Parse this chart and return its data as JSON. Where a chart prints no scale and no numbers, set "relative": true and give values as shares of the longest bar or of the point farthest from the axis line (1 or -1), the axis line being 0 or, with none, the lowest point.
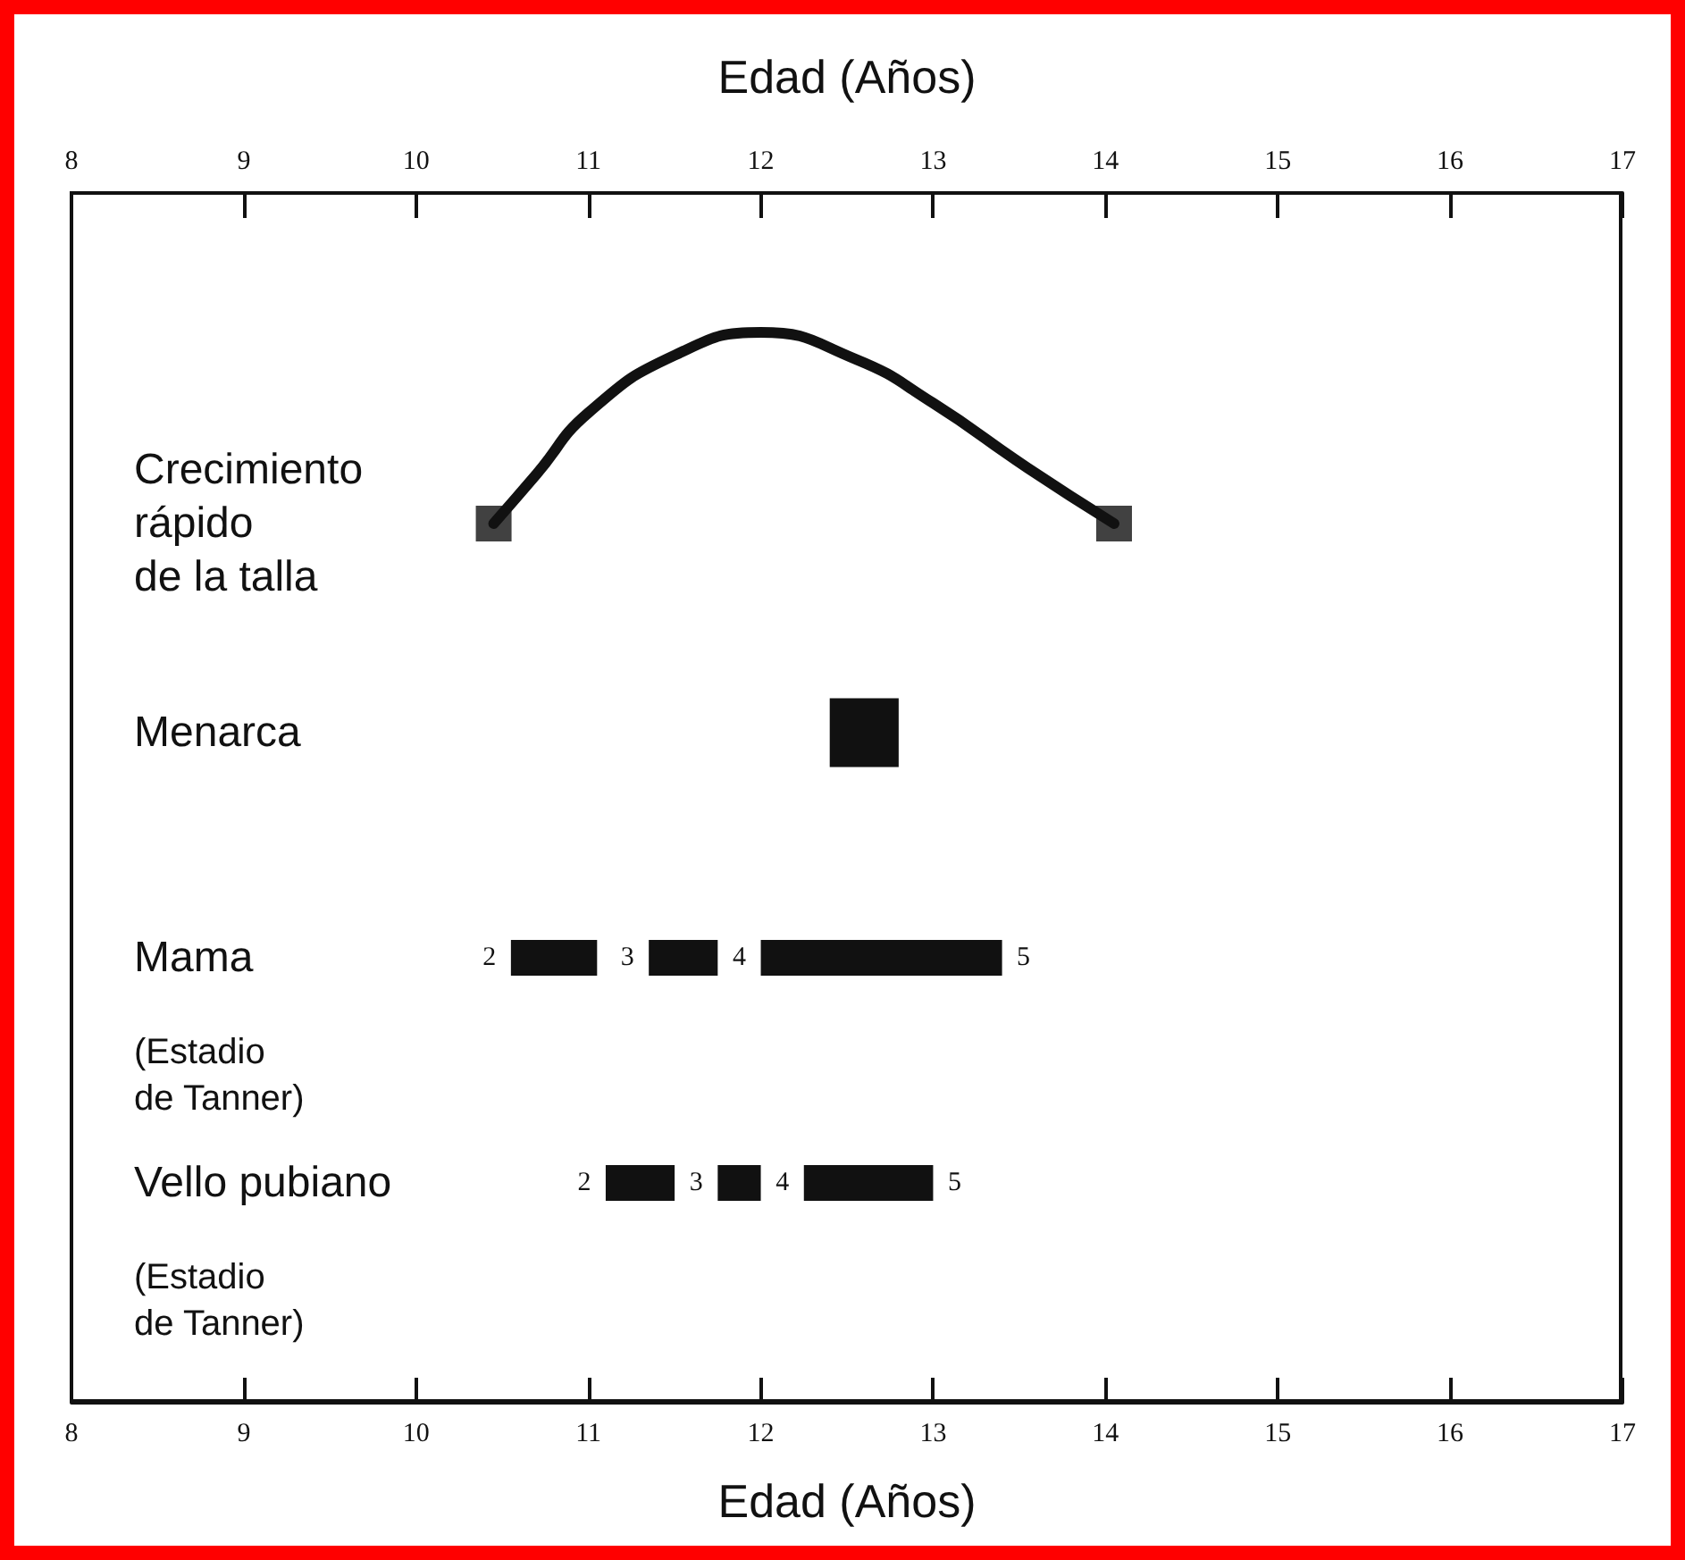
{
  "chart_data": [
    {
      "type": "line",
      "relative": true,
      "xlim": [
        8,
        17
      ],
      "xticks": [
        8,
        9,
        10,
        11,
        12,
        13,
        14,
        15,
        16,
        17
      ],
      "xlabel": "Edad (Años)",
      "annotations": [
        "Crecimiento\nrápido\nde la talla"
      ],
      "series": [
        {
          "color": "#111111",
          "x": [
            10.45,
            10.7,
            11.0,
            11.5,
            12.0,
            12.55,
            13.0,
            13.55,
            14.05
          ],
          "values": [
            0,
            0.26,
            0.58,
            0.88,
            1,
            0.86,
            0.63,
            0.29,
            0
          ]
        },
        {
          "type": "scatter",
          "marker": "square",
          "color": "#111111",
          "x": [
            10.45,
            14.05
          ],
          "values": [
            0,
            0
          ]
        }
      ]
    },
    {
      "type": "bar",
      "orientation": "horizontal",
      "xlim": [
        8,
        17
      ],
      "xticks": [
        8,
        9,
        10,
        11,
        12,
        13,
        14,
        15,
        16,
        17
      ],
      "xlabel": "Edad (Años)",
      "categories": [
        "Menarca",
        "Mama",
        "Vello pubiano"
      ],
      "series": [
        {
          "color": "#111111",
          "base": [
            12.4,
            null,
            null
          ],
          "values": [
            0.4,
            null,
            null
          ]
        },
        {
          "color": "#111111",
          "base": [
            null,
            10.55,
            11.1
          ],
          "values": [
            null,
            0.5,
            0.4
          ]
        },
        {
          "color": "#111111",
          "base": [
            null,
            11.35,
            11.75
          ],
          "values": [
            null,
            0.4,
            0.25
          ]
        },
        {
          "color": "#111111",
          "base": [
            null,
            12.0,
            12.25
          ],
          "values": [
            null,
            1.4,
            0.75
          ]
        }
      ],
      "annotations": [
        "(Estadio\nde Tanner)",
        "(Estadio\nde Tanner)",
        {
          "text": "2",
          "x": 10.55,
          "y": "Mama"
        },
        {
          "text": "3",
          "x": 11.35,
          "y": "Mama"
        },
        {
          "text": "4",
          "x": 12.0,
          "y": "Mama"
        },
        {
          "text": "5",
          "x": 13.4,
          "y": "Mama"
        },
        {
          "text": "2",
          "x": 11.1,
          "y": "Vello pubiano"
        },
        {
          "text": "3",
          "x": 11.75,
          "y": "Vello pubiano"
        },
        {
          "text": "4",
          "x": 12.25,
          "y": "Vello pubiano"
        },
        {
          "text": "5",
          "x": 13.0,
          "y": "Vello pubiano"
        }
      ]
    }
  ]
}
